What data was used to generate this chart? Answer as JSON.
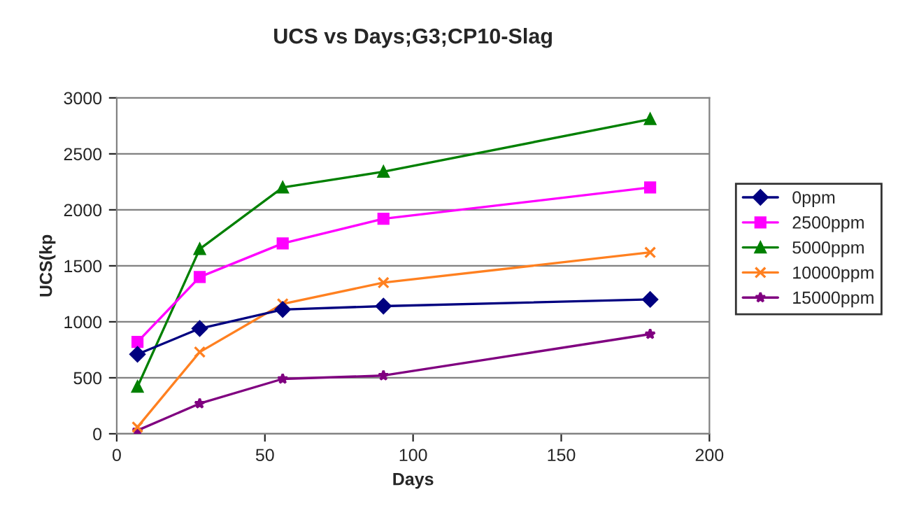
{
  "chart_data": {
    "type": "line",
    "title": "UCS vs Days;G3;CP10-Slag",
    "xlabel": "Days",
    "ylabel": "UCS(kp",
    "x": [
      7,
      28,
      56,
      90,
      180
    ],
    "series": [
      {
        "name": "0ppm",
        "color": "#000080",
        "marker": "diamond",
        "values": [
          710,
          940,
          1110,
          1140,
          1200
        ]
      },
      {
        "name": "2500ppm",
        "color": "#ff00ff",
        "marker": "square",
        "values": [
          820,
          1400,
          1700,
          1920,
          2200
        ]
      },
      {
        "name": "5000ppm",
        "color": "#008000",
        "marker": "triangle",
        "values": [
          420,
          1650,
          2200,
          2340,
          2810
        ]
      },
      {
        "name": "10000ppm",
        "color": "#ff8020",
        "marker": "cross",
        "values": [
          60,
          730,
          1160,
          1350,
          1620
        ]
      },
      {
        "name": "15000ppm",
        "color": "#800080",
        "marker": "star",
        "values": [
          30,
          270,
          490,
          520,
          890
        ]
      }
    ],
    "xlim": [
      0,
      200
    ],
    "xticks": [
      0,
      50,
      100,
      150,
      200
    ],
    "ylim": [
      0,
      3000
    ],
    "yticks": [
      0,
      500,
      1000,
      1500,
      2000,
      2500,
      3000
    ],
    "grid": "y",
    "legend": "right",
    "line_style": "solid"
  }
}
